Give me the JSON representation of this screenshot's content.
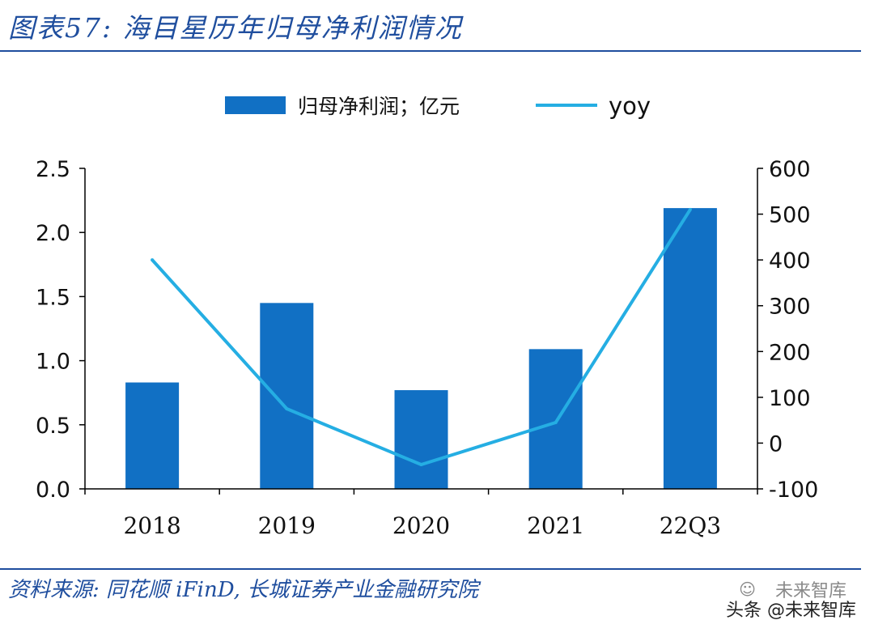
{
  "figure": {
    "title": "图表57:  海目星历年归母净利润情况",
    "source": "资料来源:  同花顺 iFinD,  长城证券产业金融研究院"
  },
  "watermark": {
    "text": "头条 @未来智库",
    "ghost_text": "未来智库",
    "icon": "wechat-icon"
  },
  "colors": {
    "bar": "#1170c4",
    "line": "#25aee3",
    "accent": "#1f4e9e",
    "text": "#111111"
  },
  "chart_data": {
    "type": "bar",
    "title": "",
    "categories": [
      "2018",
      "2019",
      "2020",
      "2021",
      "22Q3"
    ],
    "series": [
      {
        "name": "归母净利润；亿元",
        "type": "bar",
        "axis": "left",
        "values": [
          0.83,
          1.45,
          0.77,
          1.09,
          2.19
        ]
      },
      {
        "name": "yoy",
        "type": "line",
        "axis": "right",
        "values": [
          400,
          75,
          -47,
          45,
          510
        ]
      }
    ],
    "y_left": {
      "range": [
        0,
        2.5
      ],
      "ticks": [
        "0.0",
        "0.5",
        "1.0",
        "1.5",
        "2.0",
        "2.5"
      ]
    },
    "y_right": {
      "range": [
        -100,
        600
      ],
      "ticks": [
        "-100",
        "0",
        "100",
        "200",
        "300",
        "400",
        "500",
        "600"
      ]
    },
    "grid": false,
    "legend_position": "top-center"
  }
}
